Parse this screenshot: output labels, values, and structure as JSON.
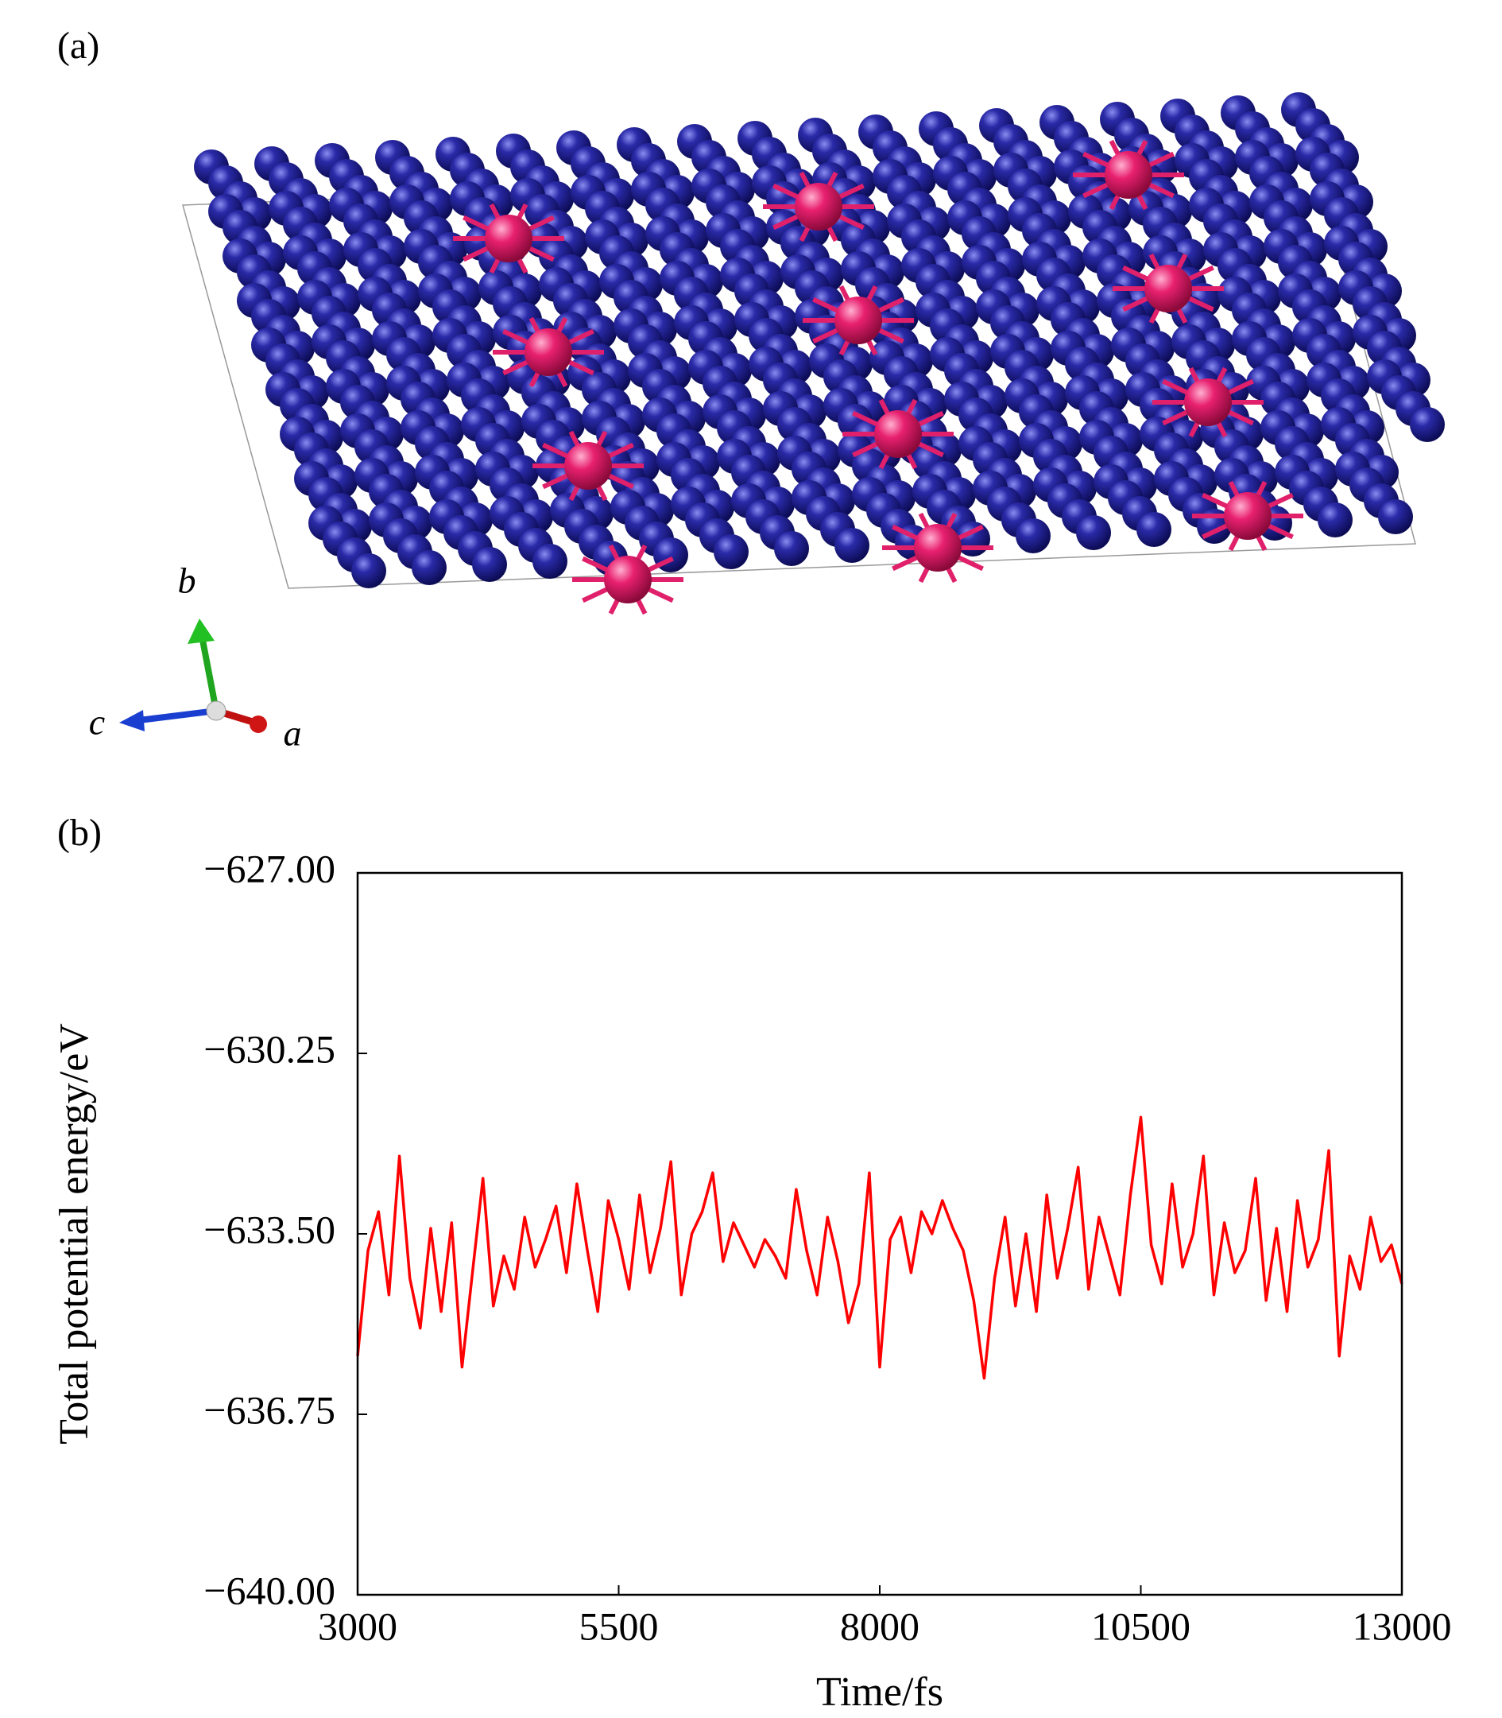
{
  "panels": {
    "a": "(a)",
    "b": "(b)"
  },
  "structure_axes": {
    "a": "a",
    "b": "b",
    "c": "c"
  },
  "chart_data": {
    "type": "line",
    "x_label": "Time/fs",
    "y_label": "Total potential energy/eV",
    "color": "#ff0000",
    "xlim": [
      3000,
      13000
    ],
    "xticks": [
      3000,
      5500,
      8000,
      10500,
      13000
    ],
    "ylim": [
      -640,
      -627
    ],
    "yticks": [
      {
        "value": -640,
        "label": "−640.00"
      },
      {
        "value": -636.75,
        "label": "−636.75"
      },
      {
        "value": -633.5,
        "label": "−633.50"
      },
      {
        "value": -630.25,
        "label": "−630.25"
      },
      {
        "value": -627,
        "label": "−627.00"
      }
    ],
    "x": [
      3000,
      3100,
      3200,
      3300,
      3400,
      3500,
      3600,
      3700,
      3800,
      3900,
      4000,
      4100,
      4200,
      4300,
      4400,
      4500,
      4600,
      4700,
      4800,
      4900,
      5000,
      5100,
      5200,
      5300,
      5400,
      5500,
      5600,
      5700,
      5800,
      5900,
      6000,
      6100,
      6200,
      6300,
      6400,
      6500,
      6600,
      6700,
      6800,
      6900,
      7000,
      7100,
      7200,
      7300,
      7400,
      7500,
      7600,
      7700,
      7800,
      7900,
      8000,
      8100,
      8200,
      8300,
      8400,
      8500,
      8600,
      8700,
      8800,
      8900,
      9000,
      9100,
      9200,
      9300,
      9400,
      9500,
      9600,
      9700,
      9800,
      9900,
      10000,
      10100,
      10200,
      10300,
      10400,
      10500,
      10600,
      10700,
      10800,
      10900,
      11000,
      11100,
      11200,
      11300,
      11400,
      11500,
      11600,
      11700,
      11800,
      11900,
      12000,
      12100,
      12200,
      12300,
      12400,
      12500,
      12600,
      12700,
      12800,
      12900,
      13000
    ],
    "values": [
      -635.7,
      -633.8,
      -633.1,
      -634.6,
      -632.1,
      -634.3,
      -635.2,
      -633.4,
      -634.9,
      -633.3,
      -635.9,
      -634.2,
      -632.5,
      -634.8,
      -633.9,
      -634.5,
      -633.2,
      -634.1,
      -633.6,
      -633.0,
      -634.2,
      -632.6,
      -633.8,
      -634.9,
      -632.9,
      -633.6,
      -634.5,
      -632.8,
      -634.2,
      -633.4,
      -632.2,
      -634.6,
      -633.5,
      -633.1,
      -632.4,
      -634.0,
      -633.3,
      -633.7,
      -634.1,
      -633.6,
      -633.9,
      -634.3,
      -632.7,
      -633.8,
      -634.6,
      -633.2,
      -634.0,
      -635.1,
      -634.4,
      -632.4,
      -635.9,
      -633.6,
      -633.2,
      -634.2,
      -633.1,
      -633.5,
      -632.9,
      -633.4,
      -633.8,
      -634.7,
      -636.1,
      -634.3,
      -633.2,
      -634.8,
      -633.5,
      -634.9,
      -632.8,
      -634.3,
      -633.4,
      -632.3,
      -634.5,
      -633.2,
      -633.9,
      -634.6,
      -632.8,
      -631.4,
      -633.7,
      -634.4,
      -632.6,
      -634.1,
      -633.5,
      -632.1,
      -634.6,
      -633.3,
      -634.2,
      -633.8,
      -632.5,
      -634.7,
      -633.4,
      -634.9,
      -632.9,
      -634.1,
      -633.6,
      -632.0,
      -635.7,
      -633.9,
      -634.5,
      -633.2,
      -634.0,
      -633.7,
      -634.4
    ]
  }
}
